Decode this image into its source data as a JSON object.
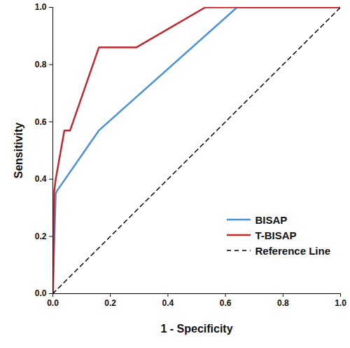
{
  "chart_data": {
    "type": "line",
    "x_label": "1 - Specificity",
    "y_label": "Sensitivity",
    "xlim": [
      0,
      1
    ],
    "ylim": [
      0,
      1
    ],
    "xticks": [
      {
        "value": 0,
        "label": "0.0"
      },
      0.2,
      0.4,
      0.6,
      0.8,
      {
        "value": 1,
        "label": "1.0"
      }
    ],
    "yticks": [
      {
        "value": 0,
        "label": "0.0"
      },
      0.2,
      0.4,
      0.6,
      0.8,
      {
        "value": 1,
        "label": "1.0"
      }
    ],
    "grid": false,
    "legend": "lower right",
    "series": [
      {
        "name": "BISAP",
        "color": "#4a90d9",
        "line_style": "solid",
        "x": [
          0,
          0.01,
          0.015,
          0.16,
          0.64,
          1
        ],
        "values": [
          0,
          0.35,
          0.36,
          0.57,
          1,
          1
        ]
      },
      {
        "name": "T-BISAP",
        "color": "#c0282d",
        "line_style": "solid",
        "x": [
          0,
          0.005,
          0.01,
          0.04,
          0.06,
          0.16,
          0.29,
          0.53,
          1
        ],
        "values": [
          0,
          0.36,
          0.4,
          0.57,
          0.57,
          0.86,
          0.86,
          1,
          1
        ]
      },
      {
        "name": "Reference Line",
        "color": "#000000",
        "line_style": "dashed",
        "x": [
          0,
          1
        ],
        "values": [
          0,
          1
        ]
      }
    ]
  }
}
